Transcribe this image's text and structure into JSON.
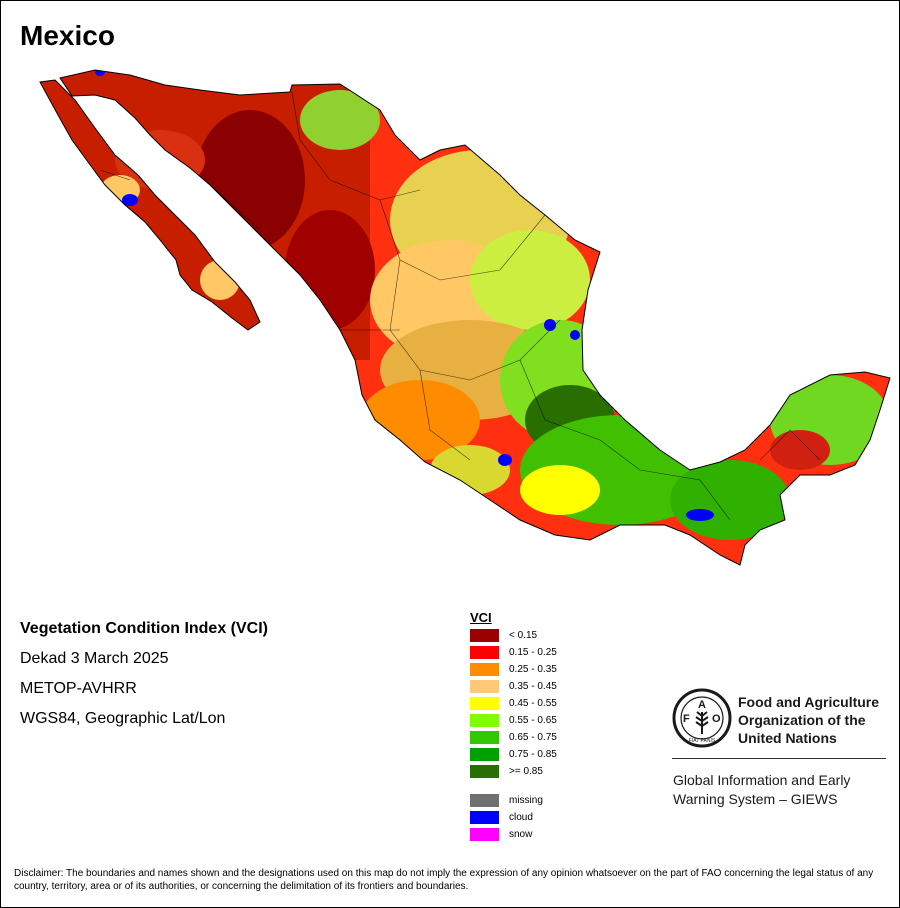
{
  "map": {
    "title": "Mexico",
    "region_colors": {
      "very_poor": "#8b0000",
      "poor": "#ff0000",
      "below_avg": "#ff8000",
      "fair": "#ffc864",
      "avg": "#ffff00",
      "good": "#80ff00",
      "very_good": "#32c800",
      "excellent": "#00a000",
      "dense": "#286e00",
      "cloud": "#0000ff",
      "boundary": "#000000"
    }
  },
  "info": {
    "index_name": "Vegetation Condition Index (VCI)",
    "period": "Dekad 3 March 2025",
    "sensor": "METOP-AVHRR",
    "projection": "WGS84, Geographic Lat/Lon"
  },
  "legend": {
    "title": "VCI",
    "classes": [
      {
        "label": "< 0.15",
        "color": "#9b0000"
      },
      {
        "label": "0.15 - 0.25",
        "color": "#ff0000"
      },
      {
        "label": "0.25 - 0.35",
        "color": "#ff8c00"
      },
      {
        "label": "0.35 - 0.45",
        "color": "#ffc878"
      },
      {
        "label": "0.45 - 0.55",
        "color": "#ffff00"
      },
      {
        "label": "0.55 - 0.65",
        "color": "#80ff00"
      },
      {
        "label": "0.65 - 0.75",
        "color": "#32c800"
      },
      {
        "label": "0.75 - 0.85",
        "color": "#00a000"
      },
      {
        "label": ">= 0.85",
        "color": "#286e00"
      }
    ],
    "extra": [
      {
        "label": "missing",
        "color": "#707070"
      },
      {
        "label": "cloud",
        "color": "#0000ff"
      },
      {
        "label": "snow",
        "color": "#ff00ff"
      }
    ]
  },
  "logo": {
    "letters": [
      "F",
      "A",
      "O"
    ],
    "motto": "FIAT PANIS",
    "org_line1": "Food and Agriculture",
    "org_line2": "Organization of the",
    "org_line3": "United Nations",
    "system_line1": "Global Information and Early",
    "system_line2": "Warning System – GIEWS"
  },
  "disclaimer": "Disclaimer: The boundaries and names shown and the designations used on this map do not imply the expression of any opinion whatsoever on the part of FAO concerning the legal status of any country, territory, area or of its authorities, or concerning the delimitation of its frontiers and boundaries."
}
